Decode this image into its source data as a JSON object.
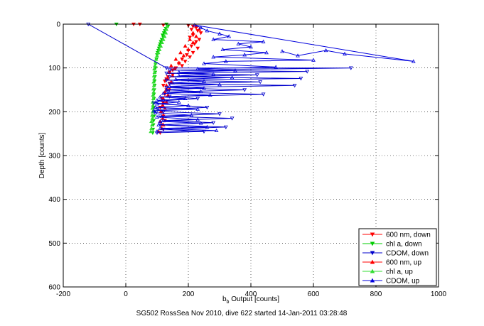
{
  "chart_data": {
    "type": "scatter",
    "title": "",
    "xlabel_main": "b",
    "xlabel_sub": "b",
    "xlabel_rest": " Output [counts]",
    "ylabel": "Depth [counts]",
    "caption": "SG502 RossSea Nov 2010, dive 622 started 14-Jan-2011 03:28:48",
    "xlim": [
      -200,
      1000
    ],
    "ylim": [
      0,
      600
    ],
    "y_reversed": true,
    "grid": true,
    "legend_position": "bottom-right",
    "x_ticks": [
      -200,
      0,
      200,
      400,
      600,
      800,
      1000
    ],
    "x_tick_labels": [
      "-200",
      "0",
      "200",
      "400",
      "600",
      "800",
      "1000"
    ],
    "y_ticks": [
      0,
      100,
      200,
      300,
      400,
      500,
      600
    ],
    "y_tick_labels": [
      "0",
      "100",
      "200",
      "300",
      "400",
      "500",
      "600"
    ],
    "series": [
      {
        "name": "600 nm, down",
        "color": "#ff0000",
        "marker": "triangle-down",
        "line": false,
        "points": [
          [
            25,
            0
          ],
          [
            45,
            0
          ],
          [
            120,
            2
          ],
          [
            200,
            3
          ],
          [
            215,
            5
          ],
          [
            225,
            8
          ],
          [
            210,
            12
          ],
          [
            230,
            15
          ],
          [
            240,
            20
          ],
          [
            215,
            25
          ],
          [
            205,
            30
          ],
          [
            235,
            35
          ],
          [
            225,
            40
          ],
          [
            220,
            45
          ],
          [
            210,
            50
          ],
          [
            230,
            55
          ],
          [
            200,
            60
          ],
          [
            215,
            65
          ],
          [
            195,
            70
          ],
          [
            205,
            75
          ],
          [
            180,
            80
          ],
          [
            190,
            85
          ],
          [
            170,
            90
          ],
          [
            180,
            95
          ],
          [
            160,
            100
          ],
          [
            150,
            105
          ],
          [
            140,
            110
          ],
          [
            150,
            115
          ],
          [
            135,
            120
          ],
          [
            130,
            125
          ],
          [
            125,
            130
          ],
          [
            140,
            135
          ],
          [
            120,
            140
          ],
          [
            130,
            150
          ],
          [
            125,
            160
          ],
          [
            115,
            170
          ],
          [
            120,
            180
          ],
          [
            110,
            190
          ],
          [
            115,
            200
          ],
          [
            120,
            210
          ],
          [
            125,
            220
          ],
          [
            115,
            230
          ],
          [
            120,
            240
          ],
          [
            110,
            248
          ]
        ]
      },
      {
        "name": "chl a, down",
        "color": "#00cc00",
        "marker": "triangle-down",
        "line": false,
        "points": [
          [
            -30,
            0
          ],
          [
            130,
            0
          ],
          [
            135,
            5
          ],
          [
            128,
            10
          ],
          [
            125,
            15
          ],
          [
            122,
            20
          ],
          [
            118,
            25
          ],
          [
            120,
            30
          ],
          [
            115,
            35
          ],
          [
            112,
            40
          ],
          [
            110,
            45
          ],
          [
            108,
            50
          ],
          [
            106,
            55
          ],
          [
            104,
            60
          ],
          [
            102,
            65
          ],
          [
            100,
            70
          ],
          [
            98,
            80
          ],
          [
            96,
            90
          ],
          [
            95,
            100
          ],
          [
            94,
            110
          ],
          [
            93,
            120
          ],
          [
            92,
            130
          ],
          [
            92,
            140
          ],
          [
            91,
            150
          ],
          [
            90,
            160
          ],
          [
            90,
            170
          ],
          [
            88,
            180
          ],
          [
            89,
            190
          ],
          [
            90,
            200
          ],
          [
            90,
            210
          ],
          [
            89,
            220
          ],
          [
            88,
            230
          ],
          [
            87,
            240
          ],
          [
            86,
            248
          ]
        ]
      },
      {
        "name": "CDOM, down",
        "color": "#0000cc",
        "marker": "triangle-down",
        "line": true,
        "points": [
          [
            -120,
            0
          ],
          [
            130,
            100
          ],
          [
            720,
            100
          ],
          [
            140,
            105
          ],
          [
            580,
            108
          ],
          [
            130,
            112
          ],
          [
            420,
            116
          ],
          [
            140,
            120
          ],
          [
            560,
            124
          ],
          [
            130,
            128
          ],
          [
            430,
            132
          ],
          [
            140,
            136
          ],
          [
            540,
            140
          ],
          [
            130,
            145
          ],
          [
            380,
            150
          ],
          [
            135,
            155
          ],
          [
            440,
            160
          ],
          [
            140,
            165
          ],
          [
            230,
            170
          ],
          [
            120,
            175
          ],
          [
            90,
            180
          ],
          [
            260,
            190
          ],
          [
            100,
            195
          ],
          [
            120,
            200
          ],
          [
            300,
            205
          ],
          [
            110,
            210
          ],
          [
            340,
            215
          ],
          [
            120,
            220
          ],
          [
            280,
            225
          ],
          [
            110,
            230
          ],
          [
            320,
            235
          ],
          [
            120,
            240
          ],
          [
            250,
            245
          ],
          [
            100,
            248
          ]
        ]
      },
      {
        "name": "600 nm, up",
        "color": "#ff0000",
        "marker": "triangle-up",
        "line": false,
        "points": [
          [
            105,
            245
          ],
          [
            115,
            238
          ],
          [
            120,
            230
          ],
          [
            110,
            222
          ],
          [
            118,
            215
          ],
          [
            120,
            208
          ],
          [
            112,
            200
          ],
          [
            125,
            192
          ],
          [
            118,
            185
          ],
          [
            130,
            178
          ],
          [
            120,
            170
          ],
          [
            135,
            162
          ],
          [
            125,
            155
          ],
          [
            140,
            148
          ],
          [
            130,
            140
          ],
          [
            145,
            132
          ],
          [
            135,
            125
          ],
          [
            150,
            118
          ],
          [
            140,
            110
          ],
          [
            155,
            102
          ],
          [
            145,
            95
          ],
          [
            170,
            88
          ],
          [
            160,
            80
          ],
          [
            185,
            72
          ],
          [
            175,
            65
          ],
          [
            200,
            58
          ],
          [
            190,
            50
          ],
          [
            215,
            42
          ],
          [
            205,
            35
          ],
          [
            225,
            28
          ],
          [
            215,
            20
          ],
          [
            235,
            12
          ],
          [
            225,
            5
          ]
        ]
      },
      {
        "name": "chl a, up",
        "color": "#33dd33",
        "marker": "triangle-up",
        "line": false,
        "points": [
          [
            80,
            245
          ],
          [
            82,
            238
          ],
          [
            84,
            230
          ],
          [
            82,
            222
          ],
          [
            85,
            215
          ],
          [
            84,
            208
          ],
          [
            86,
            200
          ],
          [
            85,
            192
          ],
          [
            87,
            185
          ],
          [
            86,
            178
          ],
          [
            88,
            170
          ],
          [
            87,
            162
          ],
          [
            89,
            155
          ],
          [
            88,
            148
          ],
          [
            90,
            140
          ],
          [
            89,
            132
          ],
          [
            91,
            125
          ],
          [
            90,
            118
          ],
          [
            92,
            110
          ],
          [
            91,
            102
          ],
          [
            93,
            95
          ],
          [
            95,
            88
          ],
          [
            97,
            80
          ],
          [
            100,
            72
          ],
          [
            104,
            65
          ],
          [
            108,
            58
          ],
          [
            112,
            50
          ],
          [
            116,
            42
          ],
          [
            120,
            35
          ],
          [
            124,
            28
          ],
          [
            128,
            20
          ],
          [
            130,
            12
          ],
          [
            132,
            5
          ]
        ]
      },
      {
        "name": "CDOM, up",
        "color": "#0000dd",
        "marker": "triangle-up",
        "line": true,
        "points": [
          [
            100,
            245
          ],
          [
            290,
            243
          ],
          [
            110,
            238
          ],
          [
            260,
            235
          ],
          [
            105,
            230
          ],
          [
            240,
            226
          ],
          [
            110,
            222
          ],
          [
            230,
            218
          ],
          [
            100,
            212
          ],
          [
            210,
            208
          ],
          [
            95,
            202
          ],
          [
            90,
            198
          ],
          [
            230,
            194
          ],
          [
            95,
            190
          ],
          [
            200,
            186
          ],
          [
            100,
            182
          ],
          [
            170,
            178
          ],
          [
            100,
            174
          ],
          [
            190,
            170
          ],
          [
            110,
            166
          ],
          [
            270,
            162
          ],
          [
            120,
            158
          ],
          [
            240,
            154
          ],
          [
            130,
            150
          ],
          [
            250,
            146
          ],
          [
            140,
            142
          ],
          [
            300,
            138
          ],
          [
            150,
            134
          ],
          [
            250,
            130
          ],
          [
            160,
            126
          ],
          [
            340,
            122
          ],
          [
            170,
            118
          ],
          [
            280,
            114
          ],
          [
            170,
            110
          ],
          [
            350,
            106
          ],
          [
            230,
            102
          ],
          [
            480,
            98
          ],
          [
            250,
            90
          ],
          [
            320,
            85
          ],
          [
            600,
            82
          ],
          [
            280,
            75
          ],
          [
            380,
            70
          ],
          [
            450,
            65
          ],
          [
            310,
            58
          ],
          [
            400,
            52
          ],
          [
            360,
            45
          ],
          [
            440,
            40
          ],
          [
            280,
            35
          ],
          [
            330,
            28
          ],
          [
            300,
            22
          ],
          [
            260,
            15
          ],
          [
            240,
            8
          ],
          [
            220,
            2
          ],
          [
            920,
            85
          ],
          [
            700,
            68
          ],
          [
            640,
            60
          ],
          [
            550,
            72
          ],
          [
            500,
            62
          ]
        ]
      }
    ]
  }
}
